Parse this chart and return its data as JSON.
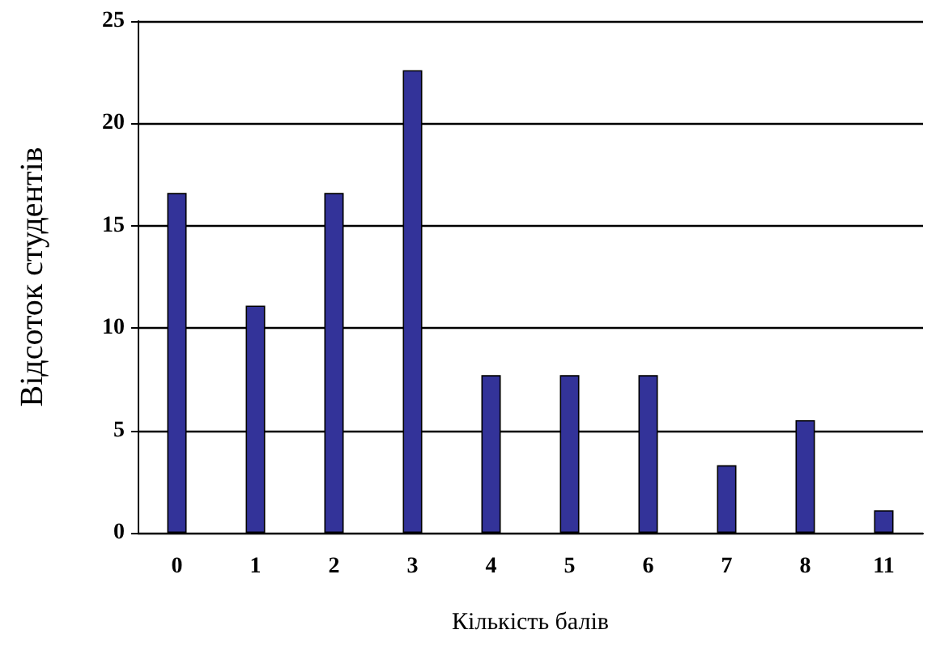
{
  "chart_data": {
    "type": "bar",
    "xlabel": "Кількість балів",
    "ylabel": "Відсоток студентів",
    "categories": [
      "0",
      "1",
      "2",
      "3",
      "4",
      "5",
      "6",
      "7",
      "8",
      "11"
    ],
    "values": [
      16.6,
      11.1,
      16.6,
      22.6,
      7.7,
      7.7,
      7.7,
      3.3,
      5.5,
      1.1
    ],
    "color": "#333399",
    "ylim": [
      0,
      25
    ],
    "yticks": [
      0,
      5,
      10,
      15,
      20,
      25
    ],
    "grid": "y"
  }
}
